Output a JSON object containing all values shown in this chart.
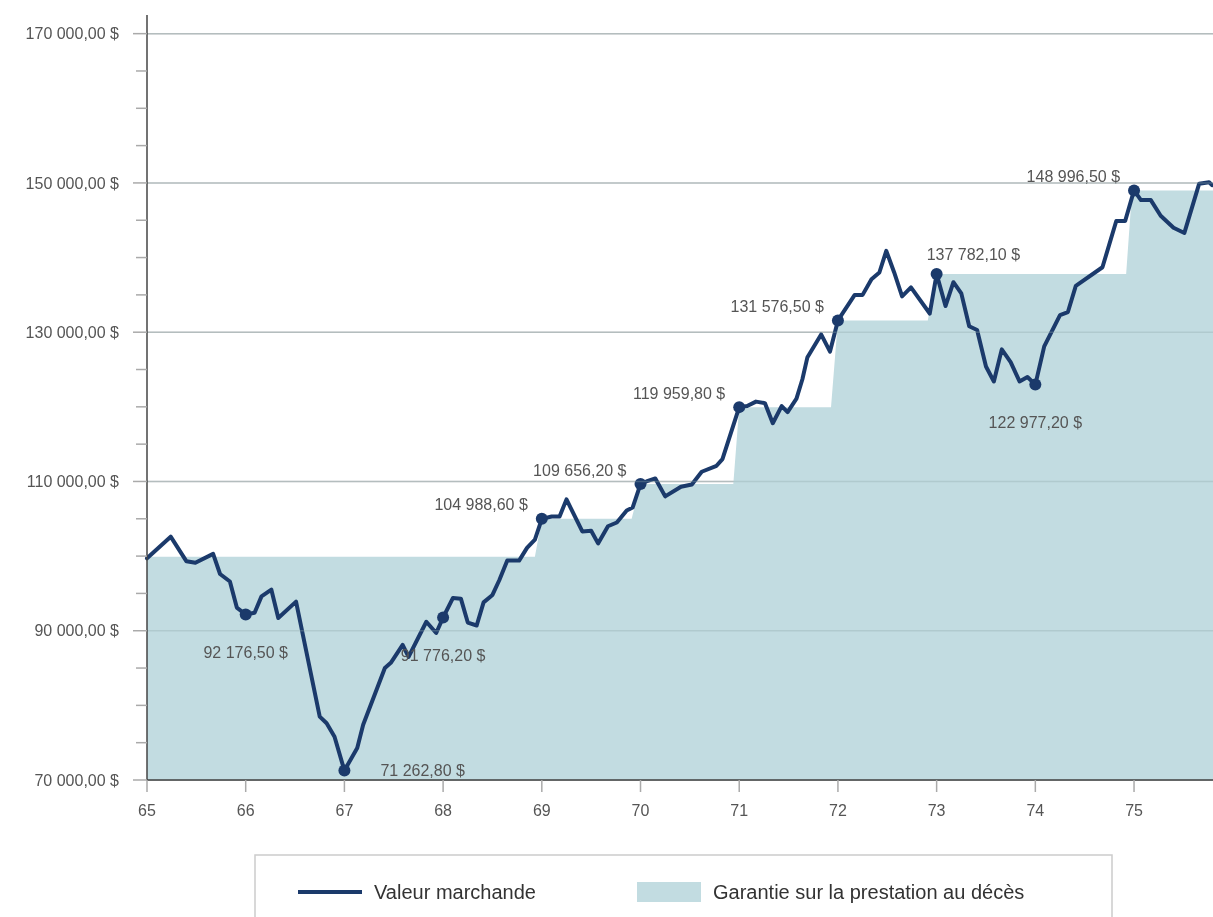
{
  "chart_data": {
    "type": "line",
    "xlim": [
      65,
      75.8
    ],
    "xticks": [
      65,
      66,
      67,
      68,
      69,
      70,
      71,
      72,
      73,
      74,
      75
    ],
    "ylim": [
      70000,
      172500
    ],
    "yticks": [
      {
        "value": 70000,
        "label": "70 000,00 $"
      },
      {
        "value": 75000,
        "label": null
      },
      {
        "value": 80000,
        "label": null
      },
      {
        "value": 85000,
        "label": null
      },
      {
        "value": 90000,
        "label": "90 000,00 $"
      },
      {
        "value": 95000,
        "label": null
      },
      {
        "value": 100000,
        "label": null
      },
      {
        "value": 105000,
        "label": null
      },
      {
        "value": 110000,
        "label": "110 000,00 $"
      },
      {
        "value": 115000,
        "label": null
      },
      {
        "value": 120000,
        "label": null
      },
      {
        "value": 125000,
        "label": null
      },
      {
        "value": 130000,
        "label": "130 000,00 $"
      },
      {
        "value": 135000,
        "label": null
      },
      {
        "value": 140000,
        "label": null
      },
      {
        "value": 145000,
        "label": null
      },
      {
        "value": 150000,
        "label": "150 000,00 $"
      },
      {
        "value": 155000,
        "label": null
      },
      {
        "value": 160000,
        "label": null
      },
      {
        "value": 165000,
        "label": null
      },
      {
        "value": 170000,
        "label": "170 000,00 $"
      }
    ],
    "grid": "y",
    "legend": "bottom",
    "series": [
      {
        "name": "Garantie sur la prestation au décès",
        "type": "area",
        "color": "#c2dce1",
        "x": [
          65,
          68.93,
          69,
          69.91,
          70,
          70.94,
          71,
          71.93,
          72,
          72.91,
          73,
          74.92,
          74.98,
          75.8
        ],
        "values": [
          99900,
          99900,
          104988.6,
          104988.6,
          109656.2,
          109656.2,
          119959.8,
          119959.8,
          131576.5,
          131576.5,
          137782.1,
          137782.1,
          148996.5,
          148996.5
        ]
      },
      {
        "name": "Valeur marchande",
        "color": "#1b3a6b",
        "x": [
          65,
          65.24,
          65.4,
          65.49,
          65.67,
          65.74,
          65.84,
          65.91,
          66,
          66.09,
          66.16,
          66.26,
          66.33,
          66.51,
          66.75,
          66.82,
          66.9,
          67,
          67.13,
          67.19,
          67.41,
          67.47,
          67.59,
          67.65,
          67.83,
          67.93,
          68,
          68.1,
          68.18,
          68.25,
          68.34,
          68.41,
          68.5,
          68.57,
          68.65,
          68.77,
          68.85,
          68.93,
          69,
          69.1,
          69.18,
          69.25,
          69.41,
          69.5,
          69.57,
          69.67,
          69.76,
          69.86,
          69.92,
          70,
          70.06,
          70.15,
          70.25,
          70.41,
          70.52,
          70.62,
          70.77,
          70.83,
          71,
          71.08,
          71.17,
          71.26,
          71.34,
          71.43,
          71.49,
          71.58,
          71.64,
          71.69,
          71.83,
          71.92,
          72,
          72.17,
          72.25,
          72.34,
          72.42,
          72.49,
          72.57,
          72.65,
          72.74,
          72.93,
          73,
          73.09,
          73.17,
          73.25,
          73.33,
          73.41,
          73.5,
          73.58,
          73.66,
          73.75,
          73.84,
          73.92,
          74,
          74.09,
          74.25,
          74.33,
          74.41,
          74.68,
          74.82,
          74.91,
          75,
          75.07,
          75.17,
          75.27,
          75.4,
          75.51,
          75.66,
          75.76,
          75.79
        ],
        "values": [
          99700,
          102600,
          99300,
          99100,
          100300,
          97600,
          96600,
          93100,
          92176.5,
          92400,
          94600,
          95500,
          91700,
          93900,
          78500,
          77600,
          75800,
          71262.8,
          74300,
          77400,
          85000,
          85700,
          88100,
          86500,
          91200,
          89700,
          91776.2,
          94400,
          94300,
          91100,
          90700,
          93800,
          94800,
          96800,
          99400,
          99400,
          101100,
          102200,
          104988.6,
          105300,
          105300,
          107600,
          103300,
          103400,
          101700,
          104000,
          104500,
          106100,
          106500,
          109656.2,
          110000,
          110400,
          108000,
          109300,
          109600,
          111300,
          112100,
          113000,
          119959.8,
          120100,
          120700,
          120500,
          117800,
          120100,
          119300,
          121100,
          123700,
          126600,
          129700,
          127400,
          131576.5,
          135000,
          135000,
          137100,
          138000,
          140900,
          138000,
          134800,
          136000,
          132500,
          137782.1,
          133500,
          136700,
          135200,
          130800,
          130300,
          125400,
          123400,
          127700,
          126000,
          123400,
          124000,
          122977.2,
          128100,
          132300,
          132700,
          136200,
          138700,
          144900,
          144900,
          148996.5,
          147700,
          147700,
          145600,
          144000,
          143300,
          149900,
          150100,
          149700
        ]
      },
      {
        "type": "scatter",
        "color": "#1b3a6b",
        "marker": "circle",
        "x": [
          66,
          67,
          68,
          69,
          70,
          71,
          72,
          73,
          74,
          75
        ],
        "values": [
          92176.5,
          71262.8,
          91776.2,
          104988.6,
          109656.2,
          119959.8,
          131576.5,
          137782.1,
          122977.2,
          148996.5
        ],
        "value_labels": [
          "92 176,50 $",
          "71 262,80 $",
          "91 776,20 $",
          "104 988,60 $",
          "109 656,20 $",
          "119 959,80 $",
          "131 576,50 $",
          "137 782,10 $",
          "122 977,20 $",
          "148 996,50 $"
        ]
      }
    ]
  }
}
